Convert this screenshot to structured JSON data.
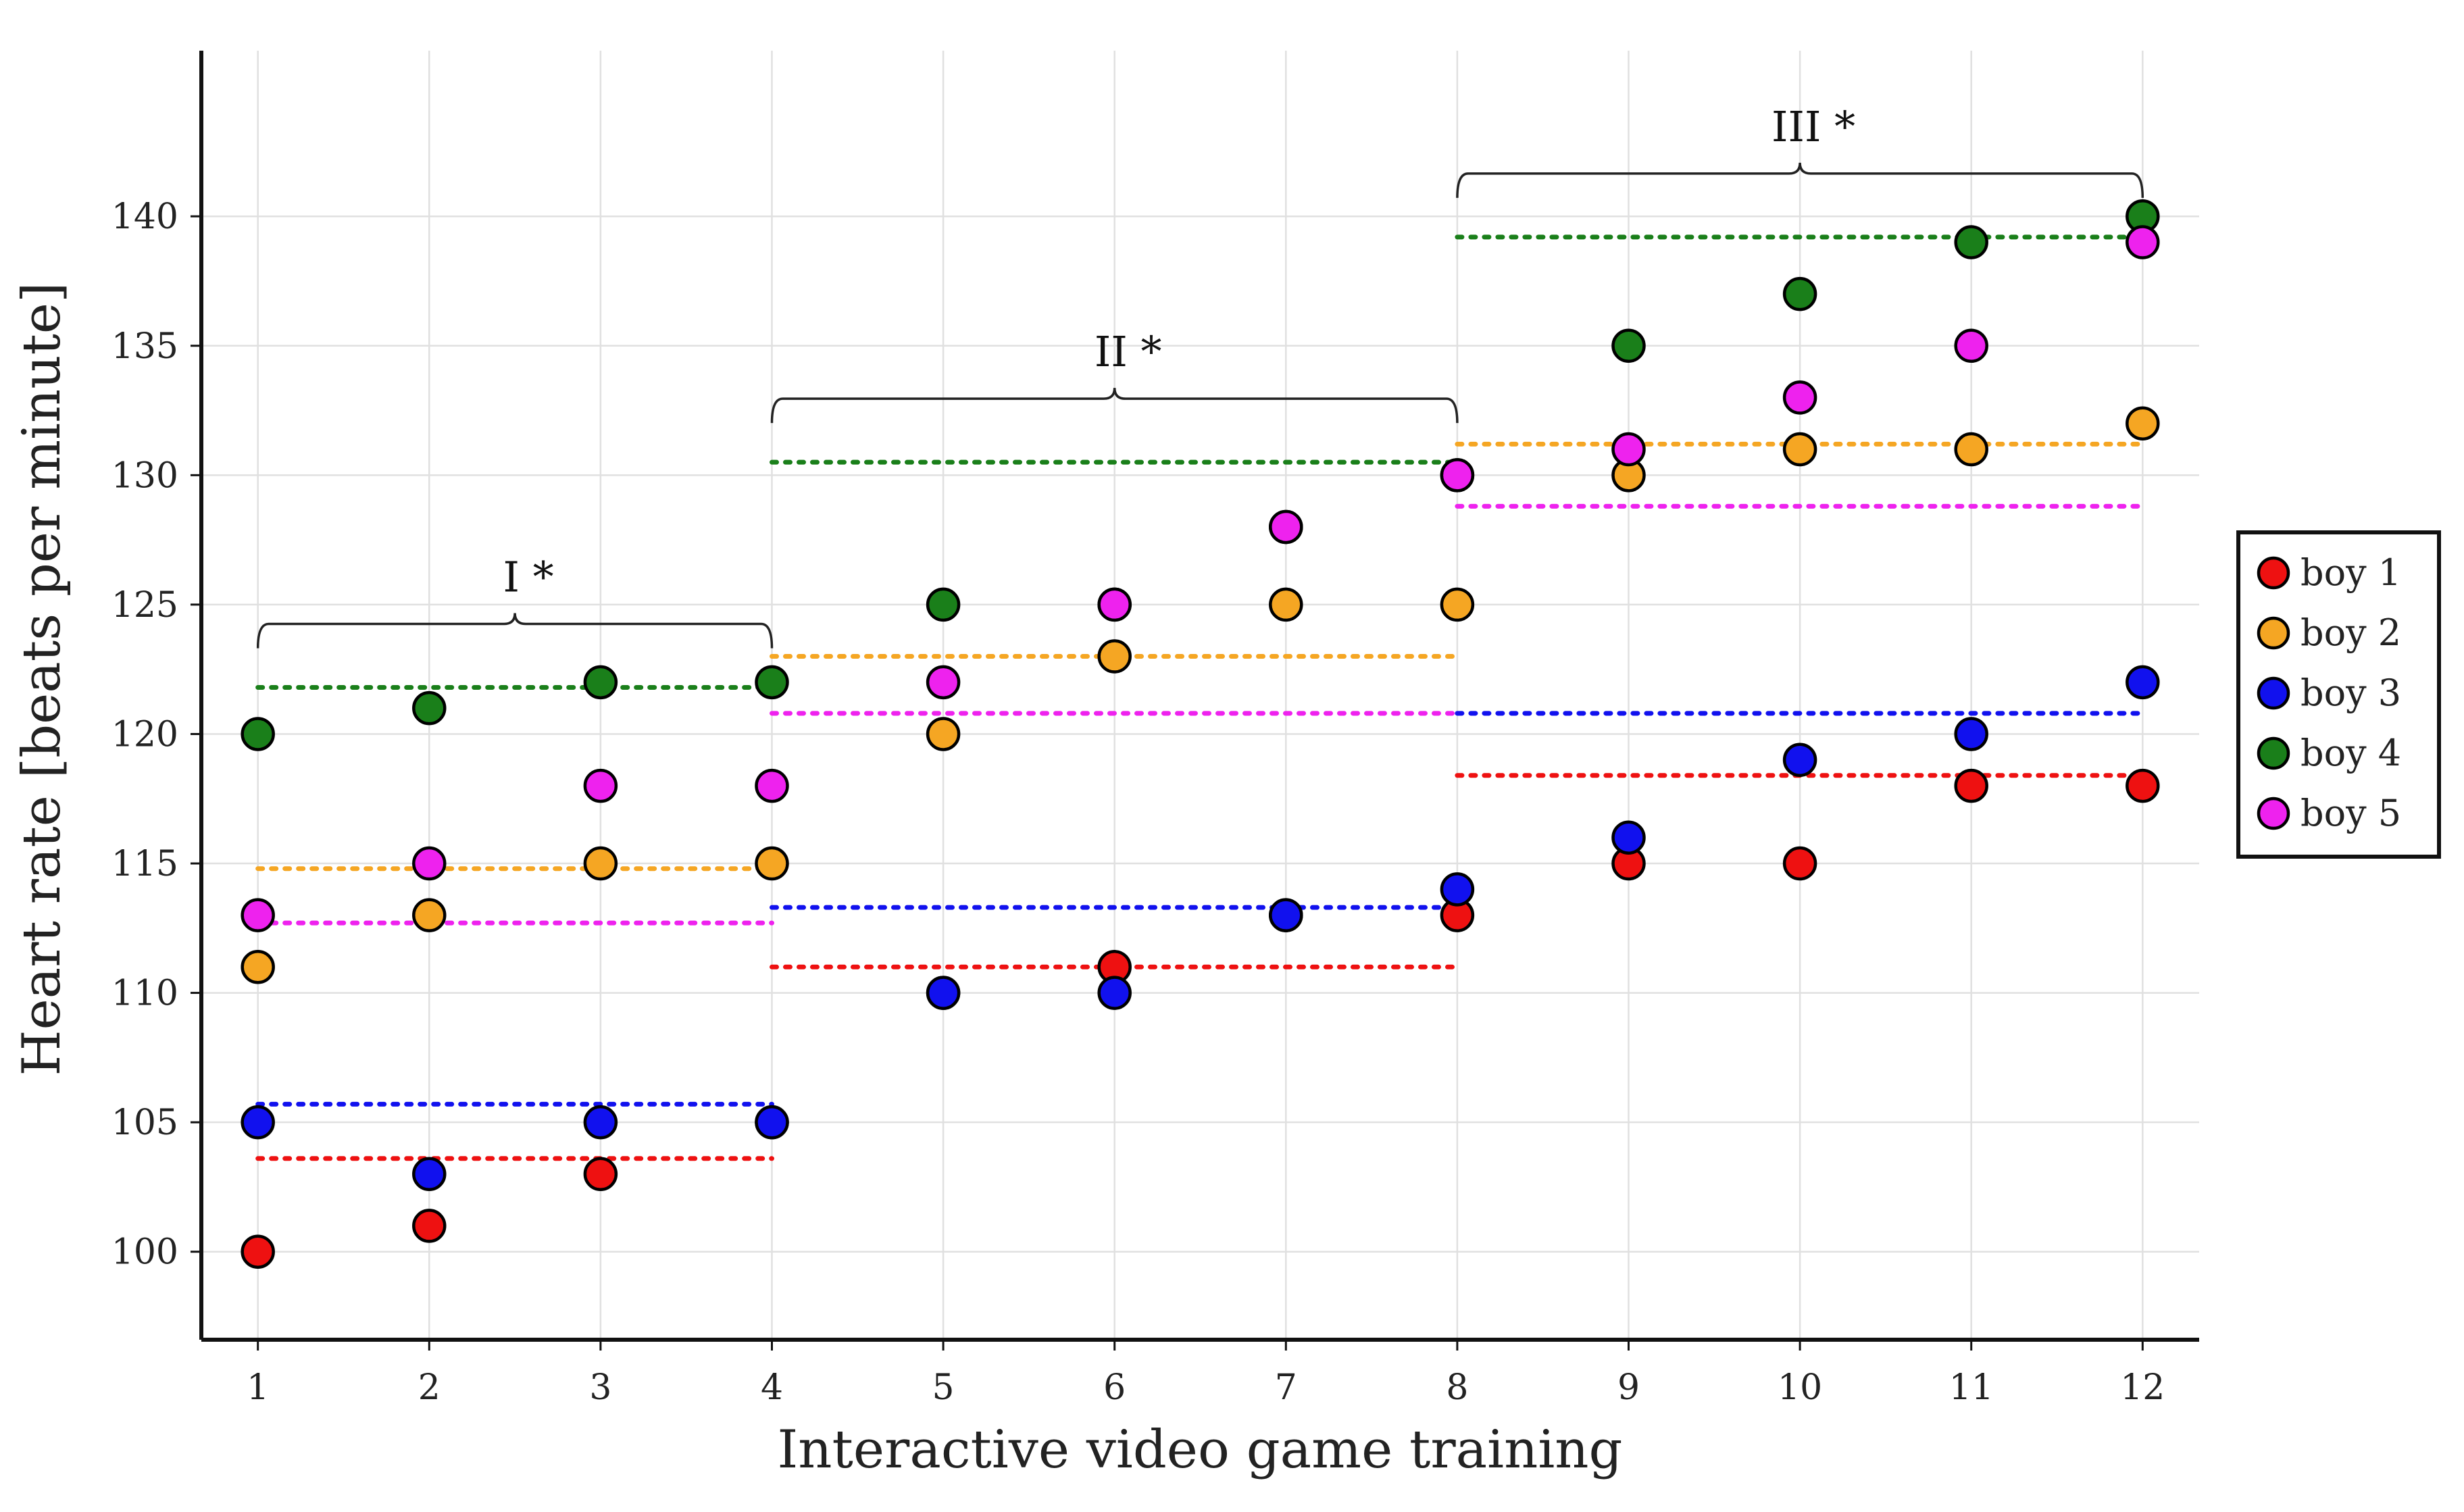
{
  "chart_data": {
    "type": "scatter",
    "xlabel": "Interactive video game training",
    "ylabel": "Heart rate [beats per minute]",
    "xlim": [
      0.67,
      12.33
    ],
    "ylim": [
      96.6,
      146.4
    ],
    "x": [
      1,
      2,
      3,
      4,
      5,
      6,
      7,
      8,
      9,
      10,
      11,
      12
    ],
    "xticks": [
      "1",
      "2",
      "3",
      "4",
      "5",
      "6",
      "7",
      "8",
      "9",
      "10",
      "11",
      "12"
    ],
    "yticks": [
      "100",
      "105",
      "110",
      "115",
      "120",
      "125",
      "130",
      "135",
      "140"
    ],
    "grid": true,
    "legend_position": "right",
    "series": [
      {
        "name": "boy 1",
        "color": "#ee1111",
        "values": [
          100,
          101,
          103,
          105,
          110,
          111,
          113,
          113,
          115,
          115,
          118,
          118
        ]
      },
      {
        "name": "boy 2",
        "color": "#f5a623",
        "values": [
          111,
          113,
          115,
          115,
          120,
          123,
          125,
          125,
          130,
          131,
          131,
          132
        ]
      },
      {
        "name": "boy 3",
        "color": "#1111ee",
        "values": [
          105,
          103,
          105,
          105,
          110,
          110,
          113,
          114,
          116,
          119,
          120,
          122
        ]
      },
      {
        "name": "boy 4",
        "color": "#1a7f1a",
        "values": [
          120,
          121,
          122,
          122,
          125,
          125,
          128,
          130,
          135,
          137,
          139,
          140
        ]
      },
      {
        "name": "boy 5",
        "color": "#ee22ee",
        "values": [
          113,
          115,
          118,
          118,
          122,
          125,
          128,
          130,
          131,
          133,
          135,
          139
        ]
      }
    ],
    "phase_means": [
      {
        "phase": "I",
        "x_range": [
          1,
          4
        ],
        "means": [
          103.6,
          114.8,
          105.7,
          121.8,
          112.7
        ]
      },
      {
        "phase": "II",
        "x_range": [
          4,
          8
        ],
        "means": [
          111,
          123,
          113.3,
          130.5,
          120.8
        ]
      },
      {
        "phase": "III",
        "x_range": [
          8,
          12
        ],
        "means": [
          118.4,
          131.2,
          120.8,
          139.2,
          128.8
        ]
      }
    ],
    "annotations": [
      {
        "label": "I *",
        "x_range": [
          1,
          4
        ]
      },
      {
        "label": "II *",
        "x_range": [
          4,
          8
        ]
      },
      {
        "label": "III *",
        "x_range": [
          8,
          12
        ]
      }
    ]
  }
}
